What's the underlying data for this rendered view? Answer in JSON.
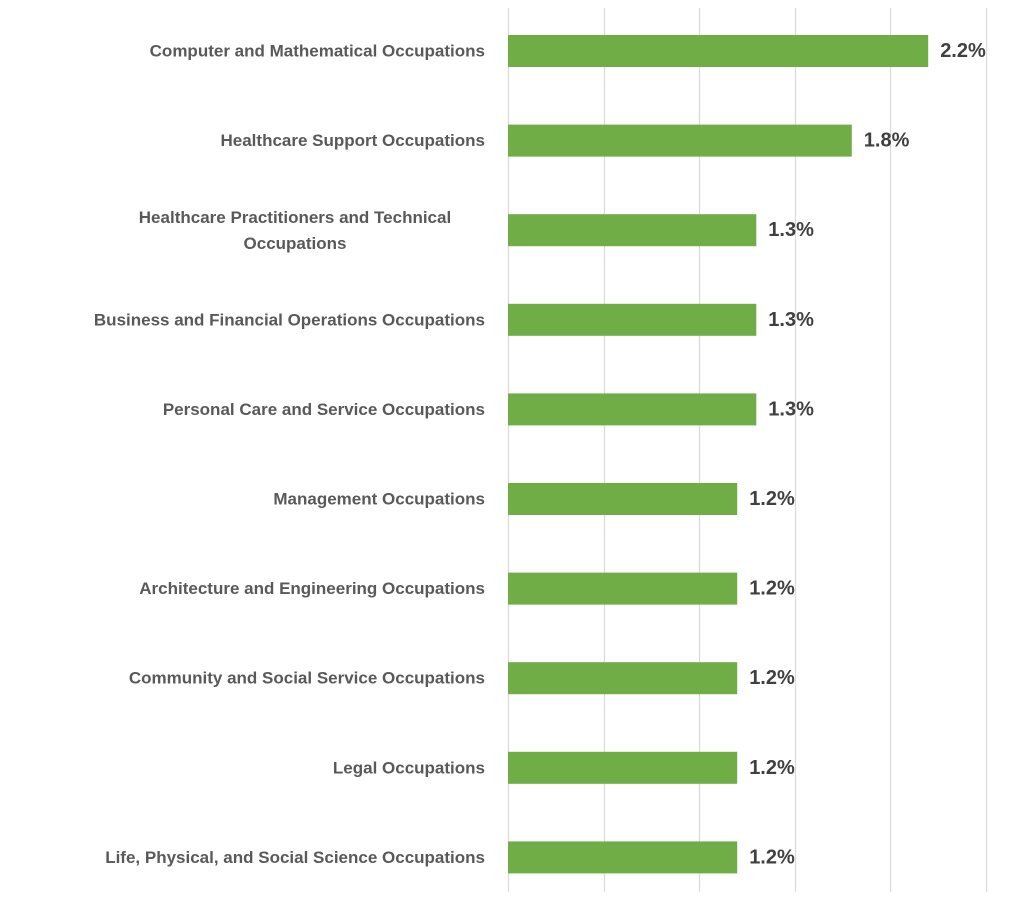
{
  "chart_data": {
    "type": "bar",
    "orientation": "horizontal",
    "title": "",
    "xlabel": "",
    "ylabel": "",
    "xlim": [
      0,
      2.5
    ],
    "grid": true,
    "legend": "none",
    "value_format": "percent-1-decimal",
    "colors": {
      "bar": "#70AD47",
      "gridline": "#D9D9D9",
      "category_label": "#595959",
      "value_label": "#404040"
    },
    "categories": [
      [
        "Computer and Mathematical Occupations"
      ],
      [
        "Healthcare Support Occupations"
      ],
      [
        "Healthcare Practitioners and Technical",
        "Occupations"
      ],
      [
        "Business and Financial Operations Occupations"
      ],
      [
        "Personal Care and Service Occupations"
      ],
      [
        "Management Occupations"
      ],
      [
        "Architecture and Engineering Occupations"
      ],
      [
        "Community and Social Service Occupations"
      ],
      [
        "Legal Occupations"
      ],
      [
        "Life, Physical, and Social Science Occupations"
      ]
    ],
    "values": [
      2.2,
      1.8,
      1.3,
      1.3,
      1.3,
      1.2,
      1.2,
      1.2,
      1.2,
      1.2
    ],
    "value_labels": [
      "2.2%",
      "1.8%",
      "1.3%",
      "1.3%",
      "1.3%",
      "1.2%",
      "1.2%",
      "1.2%",
      "1.2%",
      "1.2%"
    ]
  }
}
